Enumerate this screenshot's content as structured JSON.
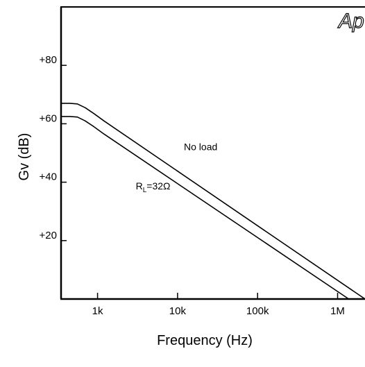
{
  "chart_data": {
    "type": "line",
    "xlabel": "Frequency (Hz)",
    "ylabel": "Gv (dB)",
    "x_scale": "log",
    "xlim": [
      350,
      2200000
    ],
    "ylim": [
      0,
      100
    ],
    "x_ticks": [
      {
        "value": 1000,
        "label": "1k"
      },
      {
        "value": 10000,
        "label": "10k"
      },
      {
        "value": 100000,
        "label": "100k"
      },
      {
        "value": 1000000,
        "label": "1M"
      }
    ],
    "y_ticks": [
      {
        "value": 20,
        "label": "+20"
      },
      {
        "value": 40,
        "label": "+40"
      },
      {
        "value": 60,
        "label": "+60"
      },
      {
        "value": 80,
        "label": "+80"
      }
    ],
    "grid": false,
    "series": [
      {
        "name": "No load",
        "x": [
          350,
          450,
          560,
          700,
          900,
          1200,
          2200000
        ],
        "y": [
          67,
          67,
          66.8,
          65.5,
          63.5,
          61,
          0
        ]
      },
      {
        "name": "R_L=32Ω",
        "x": [
          350,
          450,
          560,
          700,
          900,
          1200,
          1380000
        ],
        "y": [
          62.5,
          62.5,
          62.3,
          61,
          59,
          56.5,
          0
        ]
      }
    ],
    "annotations": [
      {
        "text": "No load",
        "x": 12000,
        "y": 51
      },
      {
        "text_main": "R",
        "text_sub": "L",
        "text_rest": "=32Ω",
        "x": 3000,
        "y": 37.5
      }
    ],
    "logo_text": "Ap"
  }
}
